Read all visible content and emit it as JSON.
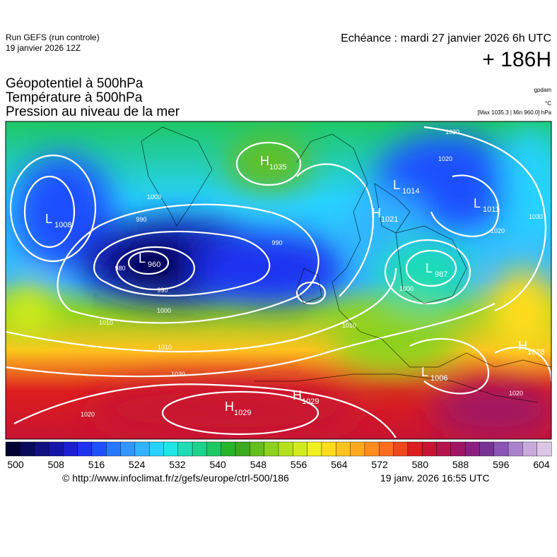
{
  "header": {
    "run": "Run GEFS (run controle)",
    "run_date": "19 janvier 2026 12Z",
    "echeance": "Echéance : mardi 27 janvier 2026 6h UTC",
    "lead": "+ 186H",
    "fields": [
      "Géopotentiel à 500hPa",
      "Température à 500hPa",
      "Pression au niveau de la mer"
    ],
    "unit_geo": "gpdam",
    "unit_temp": "°C",
    "extremes": "[Max 1035.3 | Min 960.0] hPa"
  },
  "map": {
    "centers": [
      {
        "letter": "H",
        "value": "1035"
      },
      {
        "letter": "L",
        "value": "1008"
      },
      {
        "letter": "L",
        "value": "960"
      },
      {
        "letter": "L",
        "value": "1014"
      },
      {
        "letter": "L",
        "value": "1011"
      },
      {
        "letter": "H",
        "value": "1021"
      },
      {
        "letter": "L",
        "value": "987"
      },
      {
        "letter": "H",
        "value": "1028"
      },
      {
        "letter": "L",
        "value": "1006"
      },
      {
        "letter": "H",
        "value": "1029"
      },
      {
        "letter": "H",
        "value": "1029"
      }
    ],
    "isobar_labels": [
      "1000",
      "990",
      "980",
      "990",
      "1000",
      "1010",
      "1010",
      "1020",
      "1020",
      "1030",
      "1030",
      "1020",
      "1000",
      "990",
      "1020",
      "1020",
      "1010"
    ]
  },
  "colorbar": {
    "colors": [
      "#000033",
      "#0a0a5a",
      "#101080",
      "#1414a8",
      "#1e1ed2",
      "#1e32f0",
      "#1e50ff",
      "#2878ff",
      "#3296ff",
      "#32b4ff",
      "#28d2ff",
      "#1ee6e6",
      "#1edcb4",
      "#1ed28c",
      "#1ec864",
      "#28b428",
      "#3caa1e",
      "#64be1e",
      "#8cd21e",
      "#b4e11e",
      "#d2eb1e",
      "#f0f01e",
      "#ffdc1e",
      "#ffc31e",
      "#ffaa1e",
      "#ff8c1e",
      "#ff6e1e",
      "#f0461e",
      "#dc1e1e",
      "#c81432",
      "#b4144b",
      "#a01464",
      "#8c1e82",
      "#783296",
      "#8c55b4",
      "#aa82cc",
      "#c8aadc",
      "#dcc8e6"
    ],
    "ticks": [
      500,
      508,
      516,
      524,
      532,
      540,
      548,
      556,
      564,
      572,
      580,
      588,
      596,
      604
    ]
  },
  "footer": {
    "url": "© http://www.infoclimat.fr/z/gefs/europe/ctrl-500/186",
    "stamp": "19 janv. 2026 16:55 UTC"
  }
}
